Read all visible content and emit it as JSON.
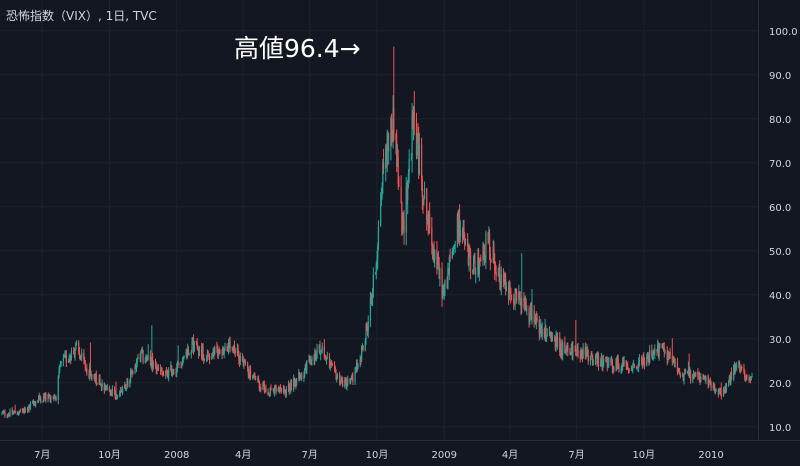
{
  "title": "恐怖指数（VIX）, 1日, TVC",
  "annotation": "高値96.4→",
  "colors": {
    "background": "#131722",
    "grid": "#1e222d",
    "up": "#26a69a",
    "down": "#ef5350",
    "text": "#d1d4dc"
  },
  "chart_data": {
    "type": "candlestick",
    "title": "恐怖指数（VIX）, 1日, TVC",
    "ylim": [
      7,
      107
    ],
    "grid": true,
    "y_ticks": [
      "10.0",
      "20.0",
      "30.0",
      "40.0",
      "50.0",
      "60.0",
      "70.0",
      "80.0",
      "90.0",
      "100.0"
    ],
    "x_ticks": [
      "7月",
      "10月",
      "2008",
      "4月",
      "7月",
      "10月",
      "2009",
      "4月",
      "7月",
      "10月",
      "2010"
    ],
    "x_tick_dates": [
      "2007-07-01",
      "2007-10-01",
      "2008-01-01",
      "2008-04-01",
      "2008-07-01",
      "2008-10-01",
      "2009-01-01",
      "2009-04-01",
      "2009-07-01",
      "2009-10-01",
      "2010-01-01"
    ],
    "date_range": [
      "2007-05-07",
      "2010-02-26"
    ],
    "annotations": [
      {
        "text": "高値96.4→",
        "date": "2008-10-24",
        "value": 96.4
      }
    ],
    "series": [
      {
        "close_anchors": [
          [
            "2007-05-07",
            13.0
          ],
          [
            "2007-06-07",
            13.5
          ],
          [
            "2007-06-27",
            16.5
          ],
          [
            "2007-07-20",
            17.0
          ],
          [
            "2007-07-26",
            24.0
          ],
          [
            "2007-08-16",
            28.0
          ],
          [
            "2007-08-31",
            23.0
          ],
          [
            "2007-09-20",
            20.0
          ],
          [
            "2007-10-10",
            17.0
          ],
          [
            "2007-10-24",
            19.5
          ],
          [
            "2007-11-12",
            26.0
          ],
          [
            "2007-11-26",
            25.0
          ],
          [
            "2007-12-14",
            21.5
          ],
          [
            "2008-01-04",
            24.0
          ],
          [
            "2008-01-22",
            29.0
          ],
          [
            "2008-02-12",
            26.0
          ],
          [
            "2008-03-10",
            28.0
          ],
          [
            "2008-03-28",
            26.0
          ],
          [
            "2008-04-10",
            22.0
          ],
          [
            "2008-05-01",
            18.5
          ],
          [
            "2008-05-28",
            18.0
          ],
          [
            "2008-06-20",
            22.0
          ],
          [
            "2008-07-15",
            28.0
          ],
          [
            "2008-07-31",
            23.0
          ],
          [
            "2008-08-15",
            20.0
          ],
          [
            "2008-08-29",
            20.5
          ],
          [
            "2008-09-15",
            30.0
          ],
          [
            "2008-09-29",
            46.0
          ],
          [
            "2008-10-10",
            70.0
          ],
          [
            "2008-10-24",
            80.0
          ],
          [
            "2008-11-05",
            54.0
          ],
          [
            "2008-11-20",
            80.0
          ],
          [
            "2008-12-08",
            58.0
          ],
          [
            "2008-12-31",
            40.0
          ],
          [
            "2009-01-20",
            56.0
          ],
          [
            "2009-02-10",
            45.0
          ],
          [
            "2009-03-02",
            52.0
          ],
          [
            "2009-03-20",
            44.0
          ],
          [
            "2009-04-15",
            38.0
          ],
          [
            "2009-05-10",
            33.0
          ],
          [
            "2009-06-10",
            28.0
          ],
          [
            "2009-07-10",
            27.0
          ],
          [
            "2009-07-30",
            25.0
          ],
          [
            "2009-08-20",
            24.0
          ],
          [
            "2009-09-20",
            24.0
          ],
          [
            "2009-10-28",
            28.0
          ],
          [
            "2009-11-20",
            22.0
          ],
          [
            "2009-12-20",
            21.0
          ],
          [
            "2010-01-15",
            17.5
          ],
          [
            "2010-02-05",
            24.0
          ],
          [
            "2010-02-26",
            21.0
          ]
        ]
      }
    ]
  }
}
